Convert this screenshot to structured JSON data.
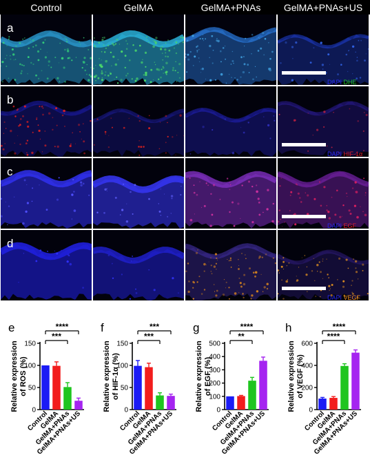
{
  "columns": [
    "Control",
    "GelMA",
    "GelMA+PNAs",
    "GelMA+PNAs+US"
  ],
  "rows": [
    {
      "letter": "a",
      "stain1": "DAPI",
      "stain2": "DHE",
      "stain2_color": "#22c322"
    },
    {
      "letter": "b",
      "stain1": "DAPI",
      "stain2": "HIF-1α",
      "stain2_color": "#e0202a"
    },
    {
      "letter": "c",
      "stain1": "DAPI",
      "stain2": "EGF",
      "stain2_color": "#e0202a"
    },
    {
      "letter": "d",
      "stain1": "DAPI",
      "stain2": "VEGF",
      "stain2_color": "#f09020"
    }
  ],
  "colors": {
    "control": "#1b1bf5",
    "gelma": "#f21d1d",
    "pnas": "#1fc51f",
    "pnas_us": "#a524f0",
    "dapi": "#2a2af2"
  },
  "chart_data": [
    {
      "letter": "e",
      "type": "bar",
      "categories": [
        "Control",
        "GelMA",
        "GelMA+PNAs",
        "GelMA+PNAs+US"
      ],
      "values": [
        100,
        99,
        51,
        20
      ],
      "errors": [
        0,
        9,
        10,
        6
      ],
      "ylabel_line1": "Relative expression",
      "ylabel_line2": "of ROS (%)",
      "ylim": [
        0,
        150
      ],
      "yticks": [
        0,
        50,
        100,
        150
      ],
      "significance": [
        {
          "from": 0,
          "to": 2,
          "label": "***"
        },
        {
          "from": 0,
          "to": 3,
          "label": "****"
        }
      ]
    },
    {
      "letter": "f",
      "type": "bar",
      "categories": [
        "Control",
        "GelMA",
        "GelMA+PNAs",
        "GelMA+PNAs+US"
      ],
      "values": [
        99,
        96,
        32,
        31
      ],
      "errors": [
        12,
        9,
        6,
        4
      ],
      "ylabel_line1": "Relative expression",
      "ylabel_line2": "of HIF-1α (%)",
      "ylim": [
        0,
        150
      ],
      "yticks": [
        0,
        50,
        100,
        150
      ],
      "significance": [
        {
          "from": 0,
          "to": 2,
          "label": "***"
        },
        {
          "from": 0,
          "to": 3,
          "label": "***"
        }
      ]
    },
    {
      "letter": "g",
      "type": "bar",
      "categories": [
        "Control",
        "GelMA",
        "GelMA+PNAs",
        "GelMA+PNAs+US"
      ],
      "values": [
        100,
        102,
        218,
        368
      ],
      "errors": [
        0,
        5,
        25,
        28
      ],
      "ylabel_line1": "Relative expression",
      "ylabel_line2": "of EGF (%)",
      "ylim": [
        0,
        500
      ],
      "yticks": [
        0,
        100,
        200,
        300,
        400,
        500
      ],
      "significance": [
        {
          "from": 0,
          "to": 2,
          "label": "**"
        },
        {
          "from": 0,
          "to": 3,
          "label": "****"
        }
      ]
    },
    {
      "letter": "h",
      "type": "bar",
      "categories": [
        "Control",
        "GelMA",
        "GelMA+PNAs",
        "GelMA+PNAs+US"
      ],
      "values": [
        100,
        106,
        395,
        515
      ],
      "errors": [
        10,
        12,
        20,
        25
      ],
      "ylabel_line1": "Relative expression",
      "ylabel_line2": "of VEGF (%)",
      "ylim": [
        0,
        600
      ],
      "yticks": [
        0,
        200,
        400,
        600
      ],
      "significance": [
        {
          "from": 0,
          "to": 2,
          "label": "****"
        },
        {
          "from": 0,
          "to": 3,
          "label": "****"
        }
      ]
    }
  ]
}
